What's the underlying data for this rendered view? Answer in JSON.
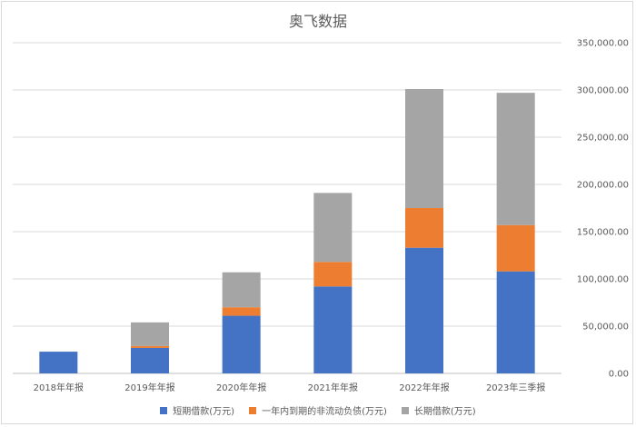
{
  "chart_data": {
    "type": "bar",
    "stacked": true,
    "title": "奥飞数据",
    "categories": [
      "2018年年报",
      "2019年年报",
      "2020年年报",
      "2021年年报",
      "2022年年报",
      "2023年三季报"
    ],
    "series": [
      {
        "name": "短期借款(万元)",
        "color": "#4472c4",
        "values": [
          23000,
          27000,
          61000,
          92000,
          133000,
          108000
        ]
      },
      {
        "name": "一年内到期的非流动负债(万元)",
        "color": "#ed7d31",
        "values": [
          0,
          2000,
          9000,
          26000,
          42000,
          49000
        ]
      },
      {
        "name": "长期借款(万元)",
        "color": "#a5a5a5",
        "values": [
          0,
          25000,
          37000,
          73000,
          126000,
          140000
        ]
      }
    ],
    "y_ticks": [
      "0.00",
      "50,000.00",
      "100,000.00",
      "150,000.00",
      "200,000.00",
      "250,000.00",
      "300,000.00",
      "350,000.00"
    ],
    "ylim": [
      0,
      350000
    ],
    "y_axis_position": "right",
    "grid": true,
    "legend_position": "bottom"
  }
}
